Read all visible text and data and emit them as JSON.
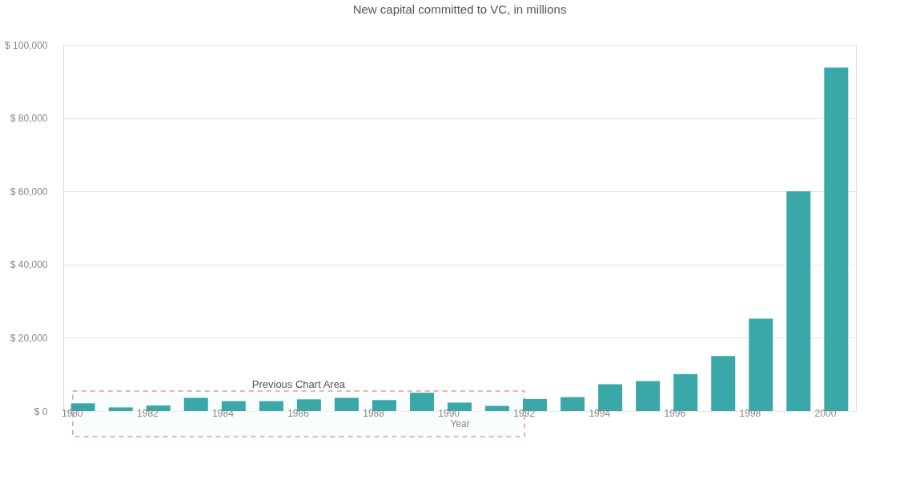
{
  "chart_data": {
    "type": "bar",
    "title": "New capital committed to VC, in millions",
    "xlabel": "Year",
    "categories": [
      "1980",
      null,
      "1982",
      null,
      "1984",
      null,
      "1986",
      null,
      "1988",
      null,
      "1990",
      null,
      "1992",
      null,
      "1994",
      null,
      "1996",
      null,
      "1998",
      null,
      "2000"
    ],
    "values": [
      2100,
      1000,
      1500,
      3600,
      2700,
      2700,
      3200,
      3600,
      3000,
      5000,
      2300,
      1400,
      3300,
      3800,
      7300,
      8200,
      10100,
      15000,
      25200,
      60000,
      93800
    ],
    "color": "#3aa8a8",
    "ylim": [
      0,
      100000
    ],
    "yticks": [
      {
        "value": 0,
        "label": "$ 0"
      },
      {
        "value": 20000,
        "label": "$ 20,000"
      },
      {
        "value": 40000,
        "label": "$ 40,000"
      },
      {
        "value": 60000,
        "label": "$ 60,000"
      },
      {
        "value": 80000,
        "label": "$ 80,000"
      },
      {
        "value": 100000,
        "label": "$ 100,000"
      }
    ],
    "grid": "y",
    "bands": [
      {
        "axis": "x",
        "from": "1980",
        "to": "1992",
        "label": "Previous Chart Area",
        "color": "#d9a0a0"
      }
    ]
  }
}
